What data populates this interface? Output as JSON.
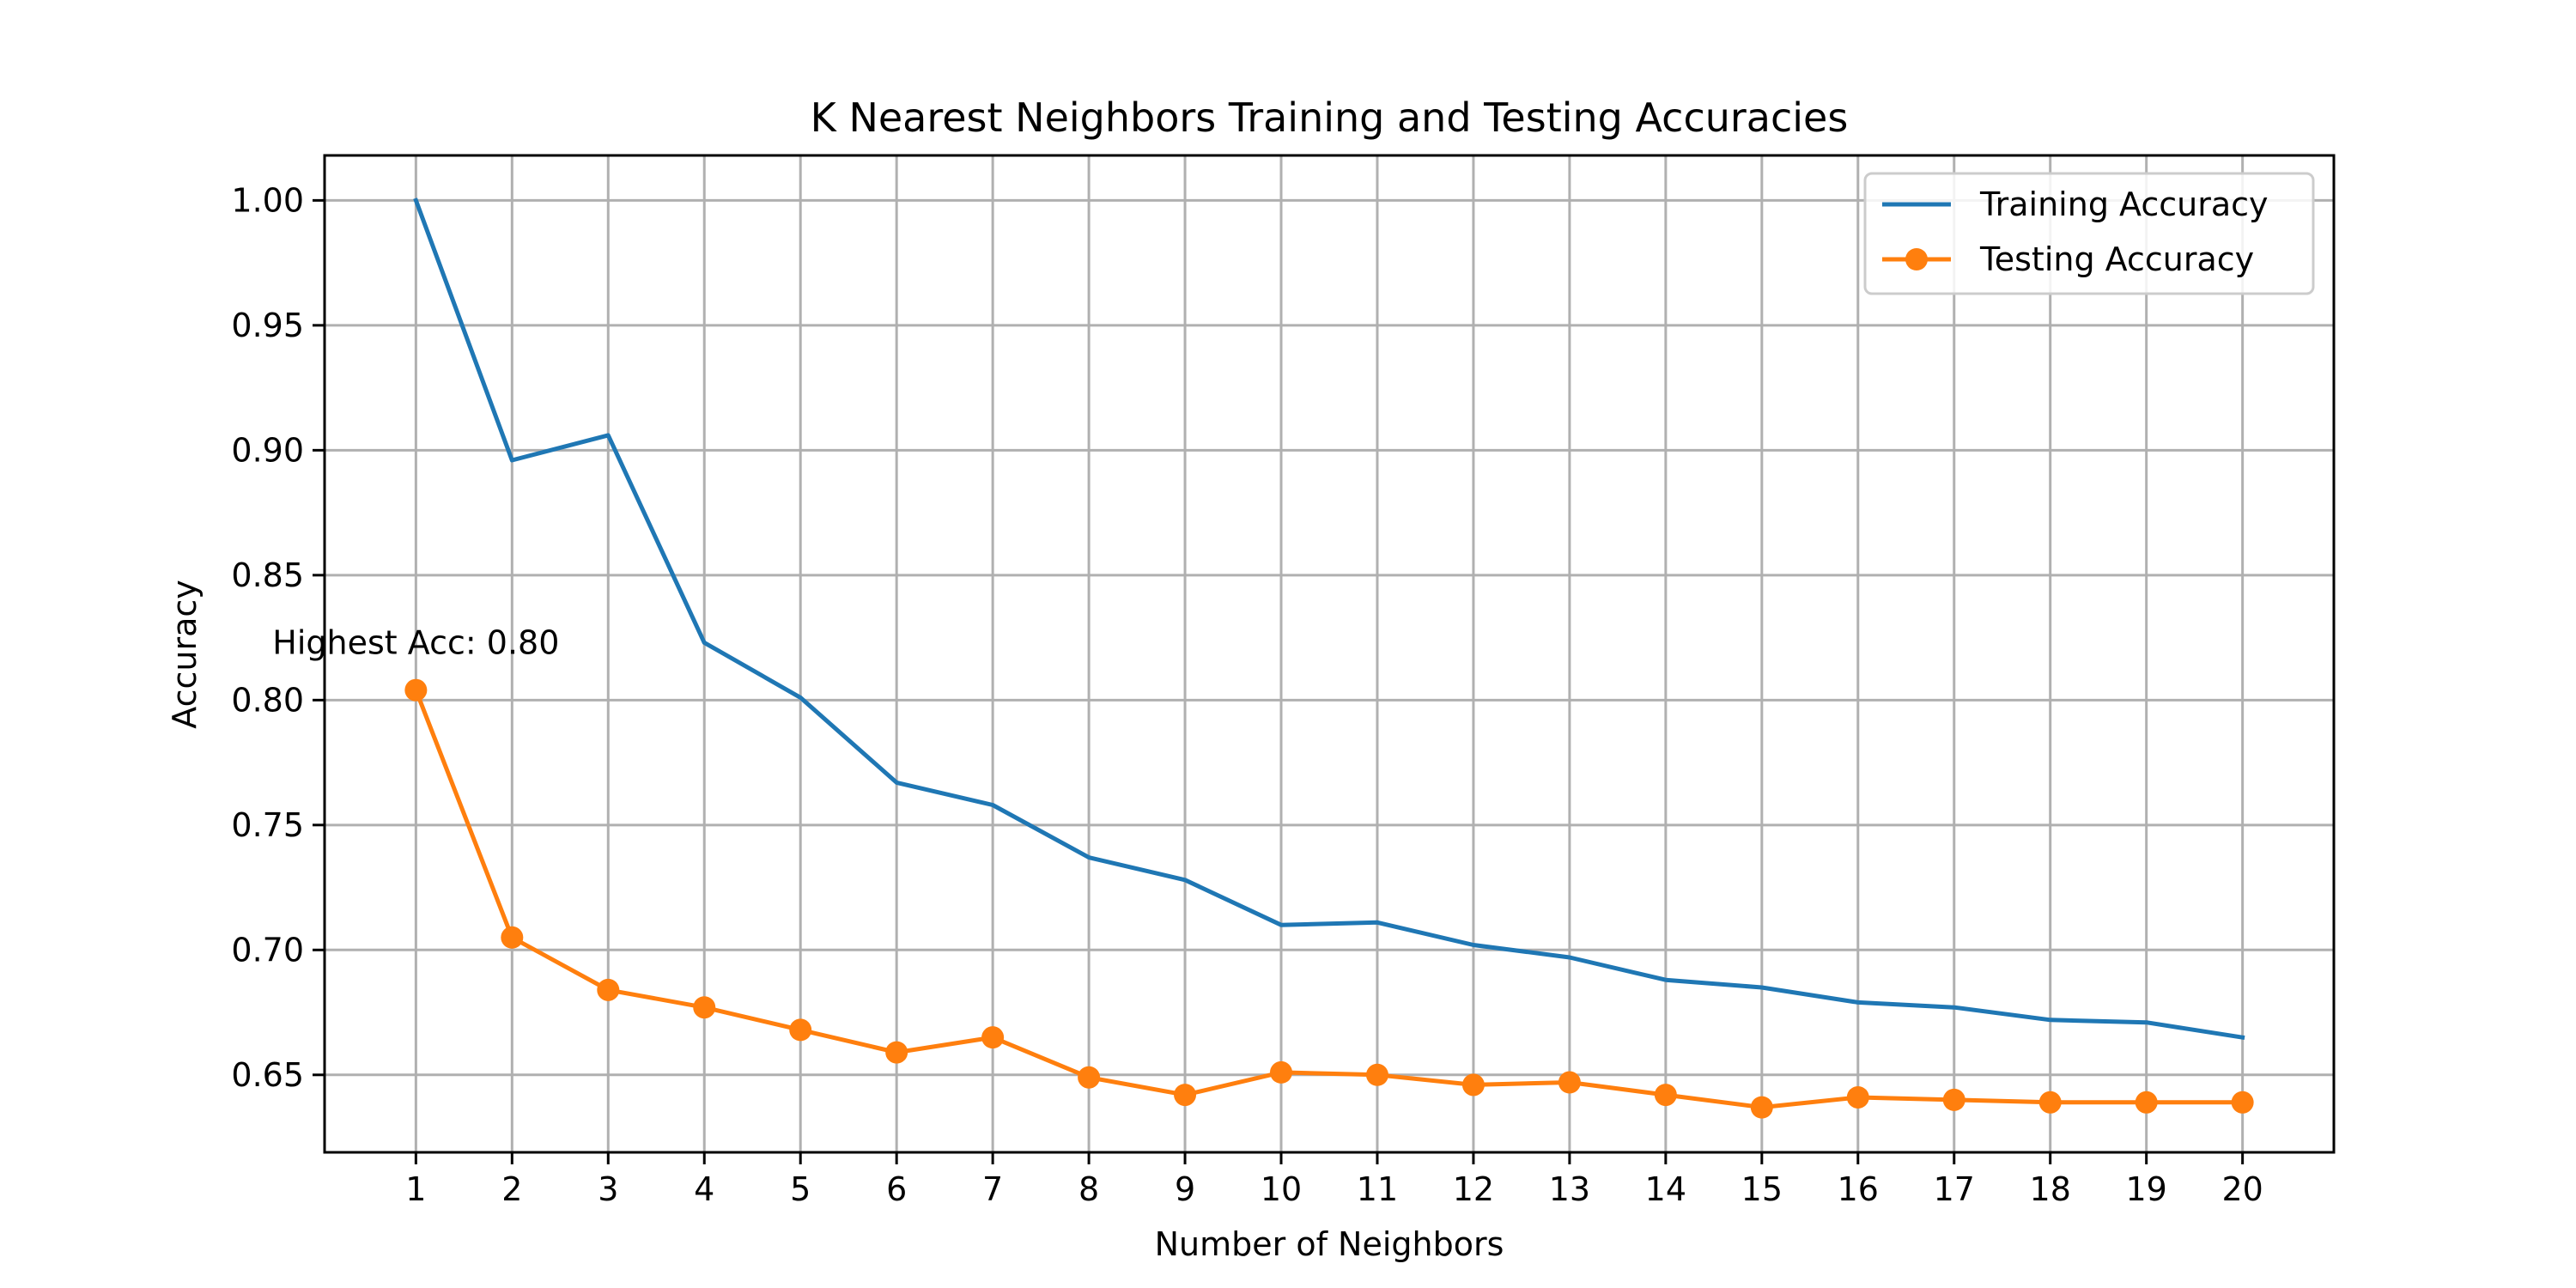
{
  "chart_data": {
    "type": "line",
    "title": "K Nearest Neighbors Training and Testing Accuracies",
    "xlabel": "Number of Neighbors",
    "ylabel": "Accuracy",
    "x": [
      1,
      2,
      3,
      4,
      5,
      6,
      7,
      8,
      9,
      10,
      11,
      12,
      13,
      14,
      15,
      16,
      17,
      18,
      19,
      20
    ],
    "x_tick_labels": [
      "1",
      "2",
      "3",
      "4",
      "5",
      "6",
      "7",
      "8",
      "9",
      "10",
      "11",
      "12",
      "13",
      "14",
      "15",
      "16",
      "17",
      "18",
      "19",
      "20"
    ],
    "y_ticks": [
      0.65,
      0.7,
      0.75,
      0.8,
      0.85,
      0.9,
      0.95,
      1.0
    ],
    "y_tick_labels": [
      "0.65",
      "0.70",
      "0.75",
      "0.80",
      "0.85",
      "0.90",
      "0.95",
      "1.00"
    ],
    "xlim": [
      0.05,
      20.95
    ],
    "ylim": [
      0.619,
      1.018
    ],
    "grid": true,
    "legend_position": "top-right",
    "series": [
      {
        "name": "Training Accuracy",
        "color": "#1f77b4",
        "marker": "none",
        "values": [
          1.0,
          0.896,
          0.906,
          0.823,
          0.801,
          0.767,
          0.758,
          0.737,
          0.728,
          0.71,
          0.711,
          0.702,
          0.697,
          0.688,
          0.685,
          0.679,
          0.677,
          0.672,
          0.671,
          0.665
        ]
      },
      {
        "name": "Testing Accuracy",
        "color": "#ff7f0e",
        "marker": "circle",
        "values": [
          0.804,
          0.705,
          0.684,
          0.677,
          0.668,
          0.659,
          0.665,
          0.649,
          0.642,
          0.651,
          0.65,
          0.646,
          0.647,
          0.642,
          0.637,
          0.641,
          0.64,
          0.639,
          0.639,
          0.639
        ]
      }
    ],
    "annotation": {
      "text": "Highest Acc: 0.80",
      "x": 1,
      "y": 0.804
    }
  }
}
